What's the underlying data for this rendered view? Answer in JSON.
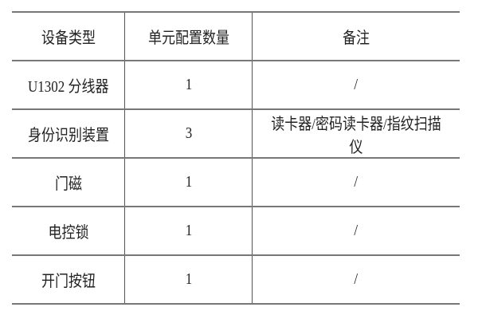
{
  "table": {
    "headers": [
      "设备类型",
      "单元配置数量",
      "备注"
    ],
    "rows": [
      [
        "U1302 分线器",
        "1",
        "/"
      ],
      [
        "身份识别装置",
        "3",
        "读卡器/密码读卡器/指纹扫描仪"
      ],
      [
        "门磁",
        "1",
        "/"
      ],
      [
        "电控锁",
        "1",
        "/"
      ],
      [
        "开门按钮",
        "1",
        "/"
      ]
    ]
  }
}
